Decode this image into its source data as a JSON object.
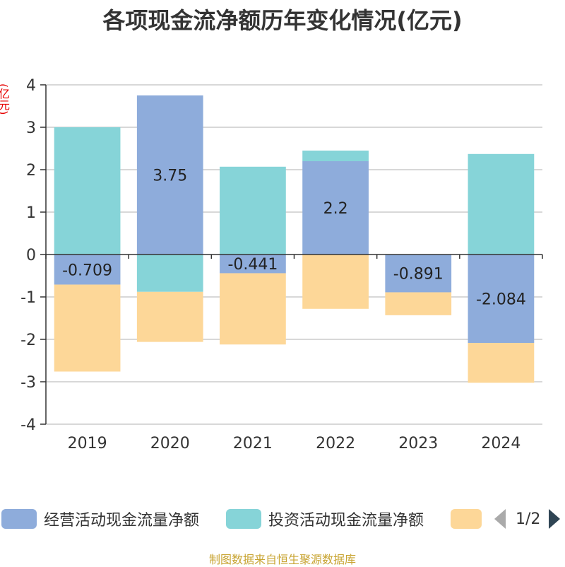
{
  "title": "各项现金流净额历年变化情况(亿元)",
  "y_unit": "(亿元)",
  "source": "制图数据来自恒生聚源数据库",
  "legend": {
    "items": [
      {
        "label": "经营活动现金流量净额",
        "color": "#8eacdb"
      },
      {
        "label": "投资活动现金流量净额",
        "color": "#86d4d8"
      },
      {
        "label": "",
        "color": "#fdd798"
      }
    ],
    "page": "1/2"
  },
  "chart_data": {
    "type": "bar",
    "stacked": true,
    "categories": [
      "2019",
      "2020",
      "2021",
      "2022",
      "2023",
      "2024"
    ],
    "ylim": [
      -4,
      4
    ],
    "yticks": [
      4,
      3,
      2,
      1,
      0,
      -1,
      -2,
      -3,
      -4
    ],
    "series": [
      {
        "name": "经营活动现金流量净额",
        "color": "#8eacdb",
        "values": [
          -0.709,
          3.75,
          -0.441,
          2.2,
          -0.891,
          -2.084
        ],
        "labels": [
          "-0.709",
          "3.75",
          "-0.441",
          "2.2",
          "-0.891",
          "-2.084"
        ]
      },
      {
        "name": "投资活动现金流量净额",
        "color": "#86d4d8",
        "values": [
          3.0,
          -0.88,
          2.07,
          0.25,
          0,
          2.37
        ]
      },
      {
        "name": "",
        "color": "#fdd798",
        "values": [
          -2.05,
          -1.18,
          -1.68,
          -1.28,
          -0.54,
          -0.94
        ]
      }
    ]
  }
}
